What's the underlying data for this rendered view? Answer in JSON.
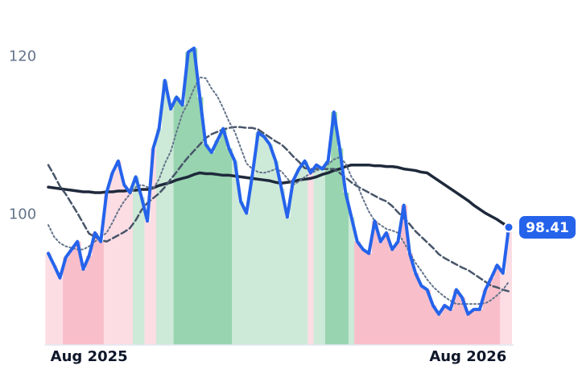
{
  "chart_data": {
    "type": "line",
    "categories": [
      null,
      null,
      null,
      null,
      null,
      null,
      null,
      "Aug 2025",
      null,
      null,
      null,
      null,
      null,
      null,
      null,
      null,
      null,
      null,
      null,
      null,
      null,
      null,
      null,
      null,
      null,
      null,
      null,
      null,
      null,
      null,
      null,
      null,
      null,
      null,
      null,
      null,
      null,
      null,
      null,
      null,
      null,
      null,
      null,
      null,
      null,
      null,
      null,
      null,
      null,
      null,
      null,
      null,
      null,
      null,
      null,
      null,
      null,
      null,
      null,
      null,
      null,
      null,
      null,
      null,
      null,
      null,
      null,
      null,
      null,
      null,
      null,
      null,
      "Aug 2026",
      null,
      null,
      null,
      null,
      null,
      null,
      null
    ],
    "ylim": [
      83.5,
      127.2
    ],
    "yticks": [
      100,
      120
    ],
    "area_colors": [
      "#fcdde4",
      "#fcdde4",
      "#fcdde4",
      "#f8bfcb",
      "#f8bfcb",
      "#f8bfcb",
      "#f8bfcb",
      "#f8bfcb",
      "#f8bfcb",
      "#f8bfcb",
      "#fcdde4",
      "#fcdde4",
      "#fcdde4",
      "#fcdde4",
      "#fcdde4",
      "#cde9d8",
      "#cde9d8",
      "#fcdde4",
      "#fcdde4",
      "#cde9d8",
      "#cde9d8",
      "#cde9d8",
      "#98d4b0",
      "#98d4b0",
      "#98d4b0",
      "#98d4b0",
      "#98d4b0",
      "#98d4b0",
      "#98d4b0",
      "#98d4b0",
      "#98d4b0",
      "#98d4b0",
      "#cde9d8",
      "#cde9d8",
      "#cde9d8",
      "#cde9d8",
      "#cde9d8",
      "#cde9d8",
      "#cde9d8",
      "#cde9d8",
      "#cde9d8",
      "#cde9d8",
      "#cde9d8",
      "#cde9d8",
      "#cde9d8",
      "#fcdde4",
      "#cde9d8",
      "#cde9d8",
      "#98d4b0",
      "#98d4b0",
      "#98d4b0",
      "#98d4b0",
      "#cde9d8",
      "#f8bfcb",
      "#f8bfcb",
      "#f8bfcb",
      "#f8bfcb",
      "#f8bfcb",
      "#f8bfcb",
      "#f8bfcb",
      "#f8bfcb",
      "#f8bfcb",
      "#f8bfcb",
      "#f8bfcb",
      "#f8bfcb",
      "#f8bfcb",
      "#f8bfcb",
      "#f8bfcb",
      "#f8bfcb",
      "#f8bfcb",
      "#f8bfcb",
      "#f8bfcb",
      "#f8bfcb",
      "#f8bfcb",
      "#f8bfcb",
      "#f8bfcb",
      "#f8bfcb",
      "#f8bfcb",
      "#fcdde4",
      "#fcdde4"
    ],
    "series": [
      {
        "color": "#1e293b",
        "style": "solid",
        "width": 3.5,
        "values": [
          103.5,
          103.4,
          103.3,
          103.2,
          103.1,
          103.0,
          102.9,
          102.9,
          102.8,
          102.8,
          102.9,
          102.9,
          103.0,
          103.0,
          103.1,
          103.1,
          103.2,
          103.2,
          103.4,
          103.7,
          103.9,
          104.1,
          104.4,
          104.6,
          104.8,
          105.1,
          105.3,
          105.2,
          105.2,
          105.1,
          105.0,
          105.0,
          104.9,
          104.8,
          104.7,
          104.6,
          104.5,
          104.4,
          104.3,
          104.1,
          104.0,
          104.1,
          104.2,
          104.4,
          104.5,
          104.6,
          104.8,
          105.1,
          105.3,
          105.6,
          105.8,
          106.1,
          106.3,
          106.3,
          106.3,
          106.3,
          106.2,
          106.2,
          106.1,
          106.1,
          106.0,
          105.8,
          105.7,
          105.6,
          105.4,
          105.3,
          104.8,
          104.3,
          103.8,
          103.3,
          102.8,
          102.3,
          101.8,
          101.2,
          100.7,
          100.2,
          99.8,
          99.4,
          98.9,
          98.5
        ]
      },
      {
        "color": "#475569",
        "style": "dashed",
        "width": 2.5,
        "values": [
          106.3,
          105.0,
          103.6,
          102.6,
          101.4,
          100.2,
          98.9,
          97.6,
          97.2,
          96.8,
          96.6,
          97.0,
          97.4,
          97.8,
          98.3,
          99.3,
          100.6,
          101.5,
          102.1,
          102.7,
          103.5,
          104.5,
          105.4,
          106.4,
          107.3,
          108.1,
          108.9,
          109.7,
          110.2,
          110.5,
          110.8,
          111.0,
          111.1,
          111.1,
          111.0,
          111.0,
          110.8,
          110.3,
          109.8,
          109.3,
          108.9,
          108.2,
          107.4,
          106.7,
          105.9,
          105.8,
          105.8,
          105.8,
          105.8,
          105.8,
          105.3,
          104.7,
          104.1,
          103.6,
          103.2,
          102.8,
          102.4,
          102.0,
          101.7,
          101.1,
          100.3,
          99.6,
          98.8,
          97.9,
          97.2,
          96.5,
          95.8,
          95.0,
          94.5,
          94.1,
          93.7,
          93.3,
          93.0,
          92.5,
          92.0,
          91.5,
          91.0,
          90.8,
          90.5,
          90.3
        ]
      },
      {
        "color": "#64748b",
        "style": "dotted",
        "width": 2,
        "values": [
          98.7,
          97.2,
          96.4,
          96.0,
          95.8,
          95.6,
          95.6,
          96.0,
          96.6,
          97.2,
          97.7,
          99.0,
          100.5,
          101.7,
          102.6,
          103.5,
          103.8,
          103.5,
          103.3,
          104.5,
          106.5,
          108.0,
          110.5,
          112.8,
          114.2,
          116.0,
          117.4,
          117.3,
          116.0,
          115.0,
          113.5,
          111.8,
          110.5,
          108.5,
          106.5,
          105.8,
          105.4,
          105.3,
          105.5,
          105.8,
          105.5,
          104.6,
          103.8,
          104.2,
          104.8,
          105.2,
          105.6,
          105.8,
          106.4,
          107.0,
          107.3,
          106.5,
          104.8,
          103.8,
          102.0,
          100.4,
          99.2,
          98.7,
          98.2,
          98.0,
          97.7,
          96.5,
          95.2,
          93.9,
          92.9,
          91.8,
          90.9,
          90.2,
          89.6,
          89.1,
          88.7,
          88.7,
          88.7,
          88.7,
          88.7,
          88.8,
          89.2,
          89.8,
          90.5,
          91.5
        ]
      },
      {
        "color": "#2563eb",
        "style": "solid",
        "width": 4,
        "area": true,
        "values": [
          95.1,
          93.6,
          92.0,
          94.6,
          95.6,
          96.6,
          93.1,
          94.8,
          97.7,
          96.6,
          102.8,
          105.3,
          106.8,
          103.8,
          102.8,
          104.8,
          102.2,
          99.2,
          108.4,
          110.9,
          117.0,
          113.4,
          114.9,
          113.9,
          120.6,
          121.1,
          114.9,
          108.9,
          107.9,
          109.4,
          110.9,
          108.4,
          106.8,
          101.7,
          100.2,
          105.0,
          110.4,
          109.9,
          108.9,
          106.8,
          103.3,
          99.7,
          104.3,
          105.8,
          106.8,
          105.3,
          106.3,
          105.8,
          106.8,
          113.0,
          108.4,
          102.8,
          99.7,
          96.6,
          95.6,
          95.1,
          99.2,
          96.6,
          97.7,
          95.6,
          96.6,
          101.2,
          95.1,
          92.6,
          91.0,
          90.5,
          88.5,
          87.4,
          88.5,
          88.0,
          90.5,
          89.5,
          87.4,
          88.0,
          88.0,
          90.5,
          92.0,
          93.6,
          92.6,
          98.41
        ]
      }
    ]
  }
}
